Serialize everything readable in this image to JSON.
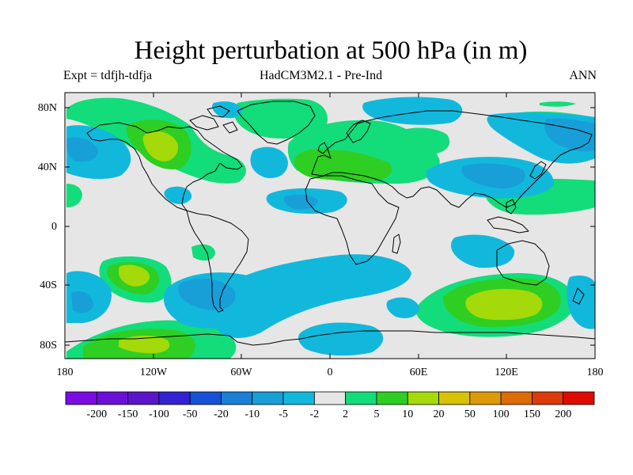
{
  "title": "Height perturbation at 500 hPa (in m)",
  "subtitle_left": "Expt = tdfjh-tdfja",
  "subtitle_center": "HadCM3M2.1 - Pre-Ind",
  "subtitle_right": "ANN",
  "lat_labels": [
    "80N",
    "40N",
    "0",
    "40S",
    "80S"
  ],
  "lon_labels": [
    "180",
    "120W",
    "60W",
    "0",
    "60E",
    "120E",
    "180"
  ],
  "colorbar": {
    "tick_labels": [
      "-200",
      "-150",
      "-100",
      "-50",
      "-20",
      "-10",
      "-5",
      "-2",
      "2",
      "5",
      "10",
      "20",
      "50",
      "100",
      "150",
      "200"
    ],
    "colors": [
      "#7a0ce3",
      "#6b10d6",
      "#5a16c8",
      "#3322d2",
      "#1652d8",
      "#1a7fd6",
      "#189fd8",
      "#12b8dc",
      "#e6e6e6",
      "#13dc7a",
      "#2fce22",
      "#a4da0a",
      "#d7c208",
      "#dc9a06",
      "#dc6c06",
      "#dc3a08",
      "#e00b00"
    ]
  },
  "map": {
    "background_color": "#e6e6e6",
    "projection": "equirectangular",
    "regions": [
      {
        "level": "-10",
        "color": "#189fd8"
      },
      {
        "level": "-5",
        "color": "#12b8dc"
      },
      {
        "level": "2",
        "color": "#13dc7a"
      },
      {
        "level": "5",
        "color": "#2fce22"
      },
      {
        "level": "10",
        "color": "#a4da0a"
      }
    ]
  }
}
